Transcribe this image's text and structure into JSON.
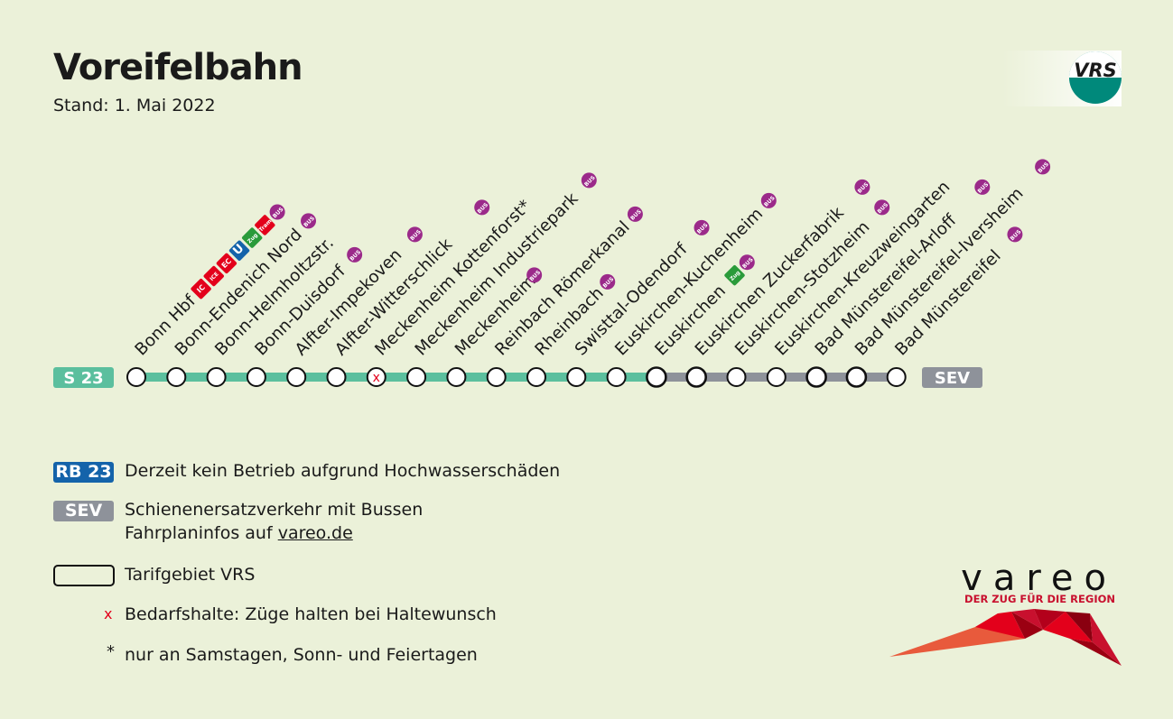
{
  "title": "Voreifelbahn",
  "subtitle": "Stand: 1. Mai 2022",
  "logo": {
    "text": "VRS"
  },
  "line": {
    "name": "S 23",
    "sev_label": "SEV",
    "colors": {
      "s23": "#5bbf9e",
      "sev": "#8e929a",
      "badge_rb": "#1463aa",
      "bus": "#9b2a8a",
      "red": "#e3001b",
      "zug": "#2a9b3a",
      "ubahn": "#1463aa"
    }
  },
  "stations": [
    {
      "name": "Bonn Hbf",
      "icons": [
        "IC",
        "ICE",
        "EC",
        "U",
        "Zug",
        "Tram",
        "BUS"
      ],
      "tarif": false,
      "demand": false,
      "sev": false
    },
    {
      "name": "Bonn-Endenich Nord",
      "icons": [
        "BUS"
      ],
      "tarif": false,
      "demand": false,
      "sev": false
    },
    {
      "name": "Bonn-Helmholtzstr.",
      "icons": [],
      "tarif": false,
      "demand": false,
      "sev": false
    },
    {
      "name": "Bonn-Duisdorf",
      "icons": [
        "BUS"
      ],
      "tarif": false,
      "demand": false,
      "sev": false
    },
    {
      "name": "Alfter-Impekoven",
      "icons": [
        "BUS"
      ],
      "tarif": false,
      "demand": false,
      "sev": false
    },
    {
      "name": "Alfter-Witterschlick",
      "icons": [
        "BUS"
      ],
      "tarif": false,
      "demand": false,
      "sev": false
    },
    {
      "name": "Meckenheim Kottenforst*",
      "icons": [],
      "tarif": false,
      "demand": true,
      "sev": false
    },
    {
      "name": "Meckenheim Industriepark",
      "icons": [
        "BUS"
      ],
      "tarif": false,
      "demand": false,
      "sev": false
    },
    {
      "name": "Meckenheim",
      "icons": [
        "BUS"
      ],
      "tarif": false,
      "demand": false,
      "sev": false
    },
    {
      "name": "Reinbach Römerkanal",
      "icons": [
        "BUS"
      ],
      "tarif": false,
      "demand": false,
      "sev": false
    },
    {
      "name": "Rheinbach",
      "icons": [
        "BUS"
      ],
      "tarif": false,
      "demand": false,
      "sev": false
    },
    {
      "name": "Swisttal-Odendorf",
      "icons": [
        "BUS"
      ],
      "tarif": false,
      "demand": false,
      "sev": false
    },
    {
      "name": "Euskirchen-Kuchenheim",
      "icons": [
        "BUS"
      ],
      "tarif": false,
      "demand": false,
      "sev": false
    },
    {
      "name": "Euskirchen",
      "icons": [
        "Zug",
        "BUS"
      ],
      "tarif": true,
      "demand": false,
      "sev": true
    },
    {
      "name": "Euskirchen Zuckerfabrik",
      "icons": [
        "BUS"
      ],
      "tarif": true,
      "demand": false,
      "sev": true
    },
    {
      "name": "Euskirchen-Stotzheim",
      "icons": [
        "BUS"
      ],
      "tarif": false,
      "demand": false,
      "sev": true
    },
    {
      "name": "Euskirchen-Kreuzweingarten",
      "icons": [],
      "tarif": false,
      "demand": false,
      "sev": true
    },
    {
      "name": "Bad Münstereifel-Arloff",
      "icons": [
        "BUS"
      ],
      "tarif": true,
      "demand": false,
      "sev": true
    },
    {
      "name": "Bad Münstereifel-Iversheim",
      "icons": [
        "BUS"
      ],
      "tarif": true,
      "demand": false,
      "sev": true
    },
    {
      "name": "Bad Münstereifel",
      "icons": [
        "BUS"
      ],
      "tarif": false,
      "demand": false,
      "sev": true
    }
  ],
  "legend": {
    "rb_badge": "RB 23",
    "rb_text": "Derzeit kein Betrieb aufgrund Hochwasserschäden",
    "sev_badge": "SEV",
    "sev_text_1": "Schienenersatzverkehr mit Bussen",
    "sev_text_2_prefix": "Fahrplaninfos auf ",
    "sev_link": "vareo.de",
    "tarif_text": "Tarifgebiet VRS",
    "demand_symbol": "x",
    "demand_text": "Bedarfshalte: Züge halten bei Haltewunsch",
    "star_symbol": "*",
    "star_text": "nur an Samstagen, Sonn- und Feiertagen"
  },
  "operator": {
    "wordmark": "vareo",
    "slogan": "DER ZUG FÜR DIE REGION"
  }
}
